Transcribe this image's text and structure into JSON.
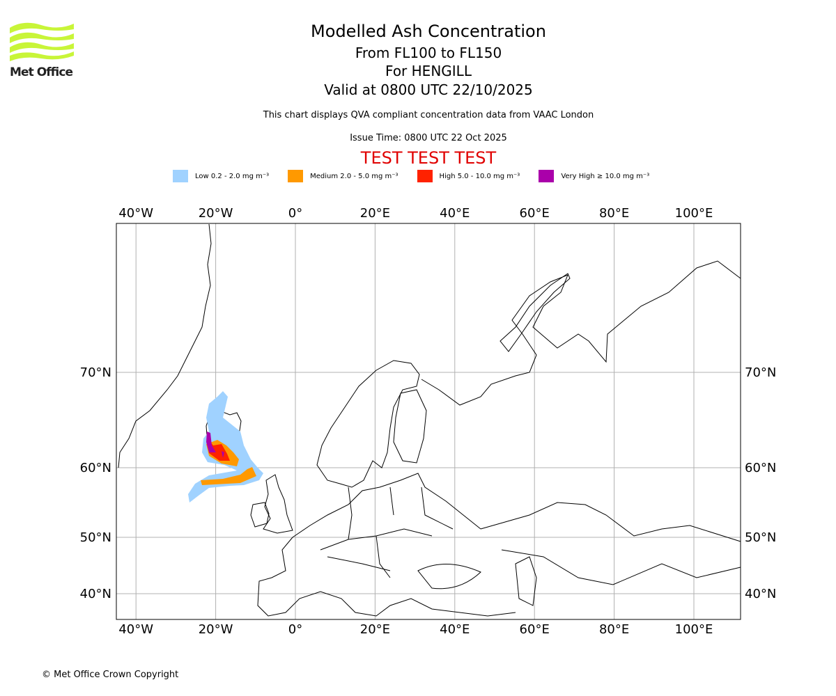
{
  "logo": {
    "text": "Met Office",
    "color": "#c8f538"
  },
  "title": "Modelled Ash Concentration",
  "subtitle_levels": "From FL100 to FL150",
  "subtitle_volcano": "For HENGILL",
  "subtitle_valid": "Valid at 0800 UTC 22/10/2025",
  "note": "This chart displays QVA compliant concentration data from VAAC London",
  "issue_time": "Issue Time: 0800 UTC 22 Oct 2025",
  "test_banner": "TEST TEST TEST",
  "legend": [
    {
      "label": "Low 0.2 - 2.0 mg m⁻³",
      "color": "#a0d2ff"
    },
    {
      "label": "Medium 2.0 - 5.0 mg m⁻³",
      "color": "#ff9900"
    },
    {
      "label": "High 5.0 - 10.0 mg m⁻³",
      "color": "#ff2200"
    },
    {
      "label": "Very High ≥ 10.0 mg m⁻³",
      "color": "#aa00aa"
    }
  ],
  "map": {
    "lon_ticks": [
      {
        "value": -40,
        "label": "40°W"
      },
      {
        "value": -20,
        "label": "20°W"
      },
      {
        "value": 0,
        "label": "0°"
      },
      {
        "value": 20,
        "label": "20°E"
      },
      {
        "value": 40,
        "label": "40°E"
      },
      {
        "value": 60,
        "label": "60°E"
      },
      {
        "value": 80,
        "label": "80°E"
      },
      {
        "value": 100,
        "label": "100°E"
      }
    ],
    "lat_ticks": [
      {
        "value": 70,
        "label": "70°N"
      },
      {
        "value": 60,
        "label": "60°N"
      },
      {
        "value": 50,
        "label": "50°N"
      },
      {
        "value": 40,
        "label": "40°N"
      }
    ]
  },
  "copyright": "© Met Office Crown Copyright"
}
